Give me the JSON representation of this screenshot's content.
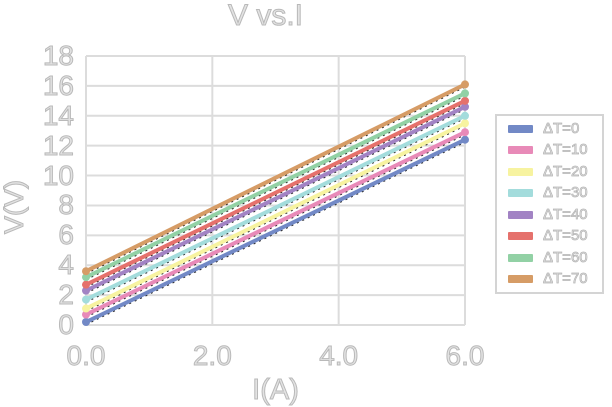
{
  "chart_data": {
    "type": "line",
    "title": "V vs.I",
    "xlabel": "I(A)",
    "ylabel": "V(V)",
    "xlim": [
      0,
      6
    ],
    "ylim": [
      0,
      18
    ],
    "y_tick_step": 2,
    "x_tick_labels": [
      "0.0",
      "2.0",
      "4.0",
      "6.0"
    ],
    "x_tick_values": [
      0,
      2,
      4,
      6
    ],
    "grid": true,
    "legend_position": "right-outside",
    "x": [
      0,
      6
    ],
    "series": [
      {
        "name": "ΔT=0",
        "color": "#7289c6",
        "values": [
          0.2,
          12.4
        ]
      },
      {
        "name": "ΔT=10",
        "color": "#e88ab8",
        "values": [
          0.7,
          12.9
        ]
      },
      {
        "name": "ΔT=20",
        "color": "#f7f3a0",
        "values": [
          1.1,
          13.5
        ]
      },
      {
        "name": "ΔT=30",
        "color": "#a3dcdc",
        "values": [
          1.7,
          14.0
        ]
      },
      {
        "name": "ΔT=40",
        "color": "#a283c4",
        "values": [
          2.3,
          14.6
        ]
      },
      {
        "name": "ΔT=50",
        "color": "#e5716c",
        "values": [
          2.7,
          15.0
        ]
      },
      {
        "name": "ΔT=60",
        "color": "#92d1a5",
        "values": [
          3.2,
          15.5
        ]
      },
      {
        "name": "ΔT=70",
        "color": "#d69c66",
        "values": [
          3.6,
          16.1
        ]
      }
    ],
    "annotations": "black dashed trendline drawn along each series"
  },
  "styles": {
    "background": "#ffffff",
    "grid_color": "#dcdcdc",
    "axis_text_fill": "#e3e3e3",
    "axis_text_stroke": "#b9b9b9",
    "legend_border": "#d4d4d4",
    "trendline_color": "#2a2a2a"
  }
}
